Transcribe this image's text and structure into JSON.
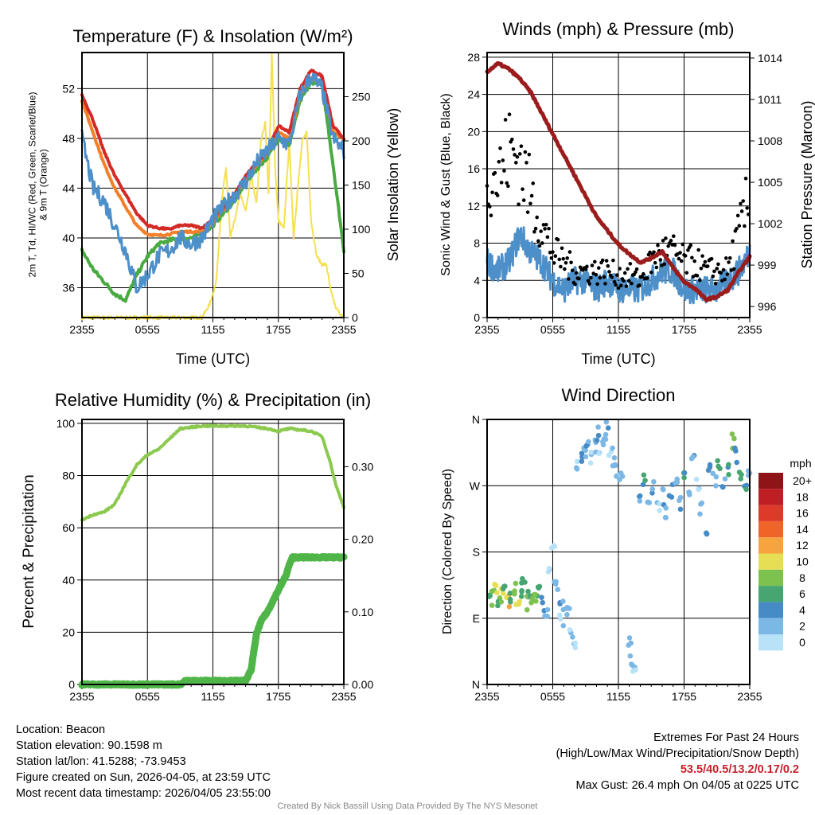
{
  "chart_data": [
    {
      "type": "line",
      "title": "Temperature (F) & Insolation (W/m²)",
      "xlabel": "Time (UTC)",
      "ylabel": "2m T, Td, HI/WC (Red, Green, Scarlet/Blue) & 9m T (Orange)",
      "ylabel_line1": "2m T, T",
      "ylabel_sub": "d",
      "ylabel_line1b": ", HI/WC (Red, Green, Scarlet/Blue)",
      "ylabel_line2": "& 9m T (Orange)",
      "y2label": "Solar Insolation (Yellow)",
      "x_ticks": [
        "2355",
        "0555",
        "1155",
        "1755",
        "2355"
      ],
      "ylim": [
        33.6,
        54.9
      ],
      "y_ticks": [
        36,
        40,
        44,
        48,
        52
      ],
      "y2lim": [
        0,
        300
      ],
      "y2_ticks": [
        0,
        50,
        100,
        150,
        200,
        250
      ],
      "hours": [
        0,
        1,
        2,
        3,
        4,
        5,
        6,
        7,
        8,
        9,
        10,
        11,
        12,
        13,
        14,
        15,
        16,
        17,
        18,
        19,
        20,
        21,
        22,
        23,
        24
      ],
      "series": [
        {
          "name": "2m T",
          "color": "#d42a26",
          "values": [
            51.5,
            49.5,
            47,
            45,
            43.5,
            42,
            41,
            40.8,
            40.7,
            41,
            41,
            40.8,
            41.5,
            42.5,
            43.5,
            45,
            46,
            47,
            49,
            48.5,
            52,
            53.5,
            53,
            49,
            48
          ]
        },
        {
          "name": "9m T",
          "color": "#f27f2a",
          "values": [
            51,
            48.5,
            46,
            44,
            42.5,
            41,
            40.3,
            40.2,
            40.3,
            40.5,
            40.5,
            40.5,
            41.3,
            42.3,
            43.3,
            44.8,
            45.8,
            46.8,
            48.5,
            48,
            51.5,
            52.8,
            52.5,
            48.5,
            48
          ]
        },
        {
          "name": "Td",
          "color": "#4aaa42",
          "values": [
            39,
            37.5,
            36.5,
            35.5,
            35,
            37,
            38.5,
            39.5,
            39.8,
            40,
            40,
            40.3,
            41,
            42,
            43,
            44.5,
            45.5,
            46.5,
            48,
            47.5,
            51,
            52.5,
            52.5,
            46,
            39
          ]
        },
        {
          "name": "HI/WC",
          "color": "#4d8fc9",
          "values": [
            48,
            44,
            43,
            41,
            39,
            36,
            37,
            38.5,
            39,
            40,
            39.5,
            40,
            41.5,
            42.5,
            43.5,
            44.5,
            46,
            47,
            48,
            47.5,
            51.5,
            53,
            52,
            48,
            47
          ]
        }
      ],
      "insolation": {
        "name": "Solar Insolation",
        "color": "#f5e04f",
        "hours": [
          0,
          11,
          11.7,
          12.3,
          12.8,
          13.2,
          13.6,
          14,
          14.5,
          15,
          15.5,
          16,
          16.4,
          16.8,
          17.1,
          17.4,
          17.7,
          18,
          18.5,
          19,
          19.4,
          19.8,
          20.2,
          20.6,
          21,
          21.5,
          22,
          22.4,
          22.8,
          23.3,
          24
        ],
        "values": [
          0,
          0,
          15,
          40,
          130,
          170,
          90,
          110,
          140,
          120,
          160,
          130,
          200,
          220,
          140,
          300,
          170,
          110,
          100,
          200,
          90,
          150,
          200,
          210,
          110,
          70,
          60,
          60,
          30,
          10,
          0
        ]
      }
    },
    {
      "type": "line",
      "title": "Winds (mph) & Pressure (mb)",
      "xlabel": "Time (UTC)",
      "ylabel": "Sonic Wind & Gust (Blue, Black)",
      "y2label": "Station Pressure (Maroon)",
      "x_ticks": [
        "2355",
        "0555",
        "1155",
        "1755",
        "2355"
      ],
      "ylim": [
        0,
        28.5
      ],
      "y_ticks": [
        0,
        4,
        8,
        12,
        16,
        20,
        24,
        28
      ],
      "y2lim": [
        995.2,
        1014.4
      ],
      "y2_ticks": [
        996,
        999,
        1002,
        1005,
        1008,
        1011,
        1014
      ],
      "hours": [
        0,
        1,
        2,
        3,
        4,
        5,
        6,
        7,
        8,
        9,
        10,
        11,
        12,
        13,
        14,
        15,
        16,
        17,
        18,
        19,
        20,
        21,
        22,
        23,
        24
      ],
      "wind": {
        "color": "#4d8fc9",
        "values": [
          6,
          5,
          6,
          9,
          7,
          6,
          4,
          3,
          4,
          4,
          3,
          4,
          3,
          3,
          3,
          4,
          5,
          5,
          3,
          3,
          3,
          3,
          4,
          5,
          7
        ]
      },
      "gust": {
        "color": "#000000",
        "values": [
          16,
          15,
          18,
          17,
          13,
          10,
          7,
          6,
          5,
          5,
          5,
          5,
          4.5,
          4.5,
          4,
          6,
          7,
          7,
          6,
          6,
          5,
          5,
          5,
          9,
          13
        ]
      },
      "pressure": {
        "color": "#9b1c1c",
        "values": [
          1013,
          1013.6,
          1013.2,
          1012.5,
          1011.5,
          1010,
          1008.5,
          1007,
          1005.5,
          1004,
          1002.5,
          1001.5,
          1000.5,
          999.8,
          999.2,
          999.5,
          1000,
          998.8,
          997.8,
          997.3,
          996.5,
          996.7,
          997.2,
          998.5,
          999.6
        ]
      }
    },
    {
      "type": "line",
      "title": "Relative Humidity (%) & Precipitation (in)",
      "ylabel": "Percent & Precipitation",
      "x_ticks": [
        "2355",
        "0555",
        "1155",
        "1755",
        "2355"
      ],
      "ylim": [
        0,
        101.5
      ],
      "y_ticks": [
        0,
        20,
        40,
        60,
        80,
        100
      ],
      "y2lim": [
        0,
        0.365
      ],
      "y2_ticks": [
        "0.00",
        "0.10",
        "0.20",
        "0.30"
      ],
      "rh": {
        "color": "#8cc94f",
        "hours": [
          0,
          1,
          2,
          3,
          4,
          5,
          6,
          7,
          8,
          9,
          10,
          11,
          12,
          13,
          14,
          15,
          16,
          17,
          18,
          19,
          20,
          21,
          22,
          22.7,
          23.3,
          24
        ],
        "values": [
          63,
          65,
          66,
          69,
          77,
          84,
          88,
          90,
          94,
          98,
          98.5,
          99,
          99,
          99,
          99,
          99,
          98.5,
          98,
          97,
          98,
          97.5,
          97,
          95,
          86,
          76,
          68
        ]
      },
      "precip": {
        "color": "#4fb548",
        "hours": [
          0,
          9,
          9.5,
          15,
          15.5,
          16,
          16.5,
          17,
          18,
          18.7,
          19,
          19.3,
          24
        ],
        "values": [
          0,
          0,
          0.005,
          0.005,
          0.02,
          0.07,
          0.09,
          0.1,
          0.13,
          0.15,
          0.165,
          0.175,
          0.175
        ]
      }
    },
    {
      "type": "scatter",
      "title": "Wind Direction",
      "ylabel": "Direction (Colored By Speed)",
      "x_ticks": [
        "2355",
        "0555",
        "1155",
        "1755",
        "2355"
      ],
      "y_ticks": [
        "N",
        "E",
        "S",
        "W",
        "N"
      ],
      "ylim": [
        0,
        360
      ],
      "colorbar": {
        "title": "mph",
        "labels": [
          "20+",
          "18",
          "16",
          "14",
          "12",
          "10",
          "8",
          "6",
          "4",
          "2",
          "0"
        ],
        "colors": [
          "#8f1418",
          "#be1e24",
          "#de3a2a",
          "#f06428",
          "#f7a43f",
          "#e6df53",
          "#7dc24e",
          "#46a571",
          "#468bc6",
          "#7cb8e6",
          "#b7e2f7"
        ]
      },
      "points": [
        [
          0.2,
          120,
          7
        ],
        [
          0.5,
          118,
          9
        ],
        [
          0.8,
          125,
          11
        ],
        [
          1.0,
          115,
          8
        ],
        [
          1.3,
          122,
          10
        ],
        [
          1.6,
          128,
          7
        ],
        [
          1.9,
          112,
          12
        ],
        [
          2.2,
          120,
          6
        ],
        [
          2.5,
          130,
          9
        ],
        [
          2.8,
          118,
          11
        ],
        [
          3.0,
          125,
          8
        ],
        [
          3.3,
          140,
          7
        ],
        [
          3.6,
          110,
          10
        ],
        [
          3.9,
          122,
          6
        ],
        [
          4.2,
          115,
          9
        ],
        [
          4.5,
          120,
          8
        ],
        [
          4.8,
          135,
          7
        ],
        [
          5.1,
          110,
          5
        ],
        [
          5.4,
          100,
          3
        ],
        [
          5.7,
          160,
          2
        ],
        [
          6.0,
          180,
          1
        ],
        [
          6.2,
          130,
          3
        ],
        [
          6.5,
          120,
          4
        ],
        [
          6.8,
          90,
          2
        ],
        [
          7.1,
          110,
          3
        ],
        [
          7.4,
          100,
          4
        ],
        [
          7.7,
          70,
          2
        ],
        [
          8.0,
          50,
          2
        ],
        [
          8.3,
          300,
          2
        ],
        [
          8.6,
          310,
          5
        ],
        [
          8.9,
          320,
          3
        ],
        [
          9.2,
          330,
          4
        ],
        [
          9.5,
          310,
          2
        ],
        [
          9.8,
          325,
          3
        ],
        [
          10.1,
          340,
          4
        ],
        [
          10.4,
          320,
          2
        ],
        [
          10.7,
          335,
          3
        ],
        [
          11.0,
          350,
          4
        ],
        [
          11.3,
          315,
          2
        ],
        [
          11.6,
          300,
          3
        ],
        [
          11.9,
          290,
          2
        ],
        [
          12.2,
          285,
          3
        ],
        [
          13.0,
          60,
          2
        ],
        [
          13.2,
          30,
          3
        ],
        [
          13.5,
          20,
          2
        ],
        [
          14.0,
          260,
          4
        ],
        [
          14.4,
          280,
          6
        ],
        [
          14.8,
          250,
          3
        ],
        [
          15.2,
          270,
          4
        ],
        [
          15.6,
          240,
          2
        ],
        [
          16.0,
          255,
          4
        ],
        [
          16.4,
          230,
          3
        ],
        [
          16.8,
          265,
          5
        ],
        [
          17.2,
          275,
          3
        ],
        [
          17.6,
          245,
          4
        ],
        [
          18.0,
          285,
          6
        ],
        [
          18.4,
          260,
          3
        ],
        [
          18.8,
          300,
          4
        ],
        [
          19.2,
          270,
          2
        ],
        [
          19.6,
          240,
          3
        ],
        [
          20.0,
          210,
          4
        ],
        [
          20.4,
          290,
          5
        ],
        [
          20.8,
          280,
          3
        ],
        [
          21.2,
          300,
          7
        ],
        [
          21.6,
          270,
          4
        ],
        [
          22.0,
          295,
          6
        ],
        [
          22.4,
          330,
          9
        ],
        [
          22.8,
          310,
          5
        ],
        [
          23.2,
          285,
          7
        ],
        [
          23.6,
          275,
          6
        ],
        [
          24.0,
          290,
          4
        ]
      ]
    }
  ],
  "info_left": [
    "Location: Beacon",
    "Station elevation: 90.1598 m",
    "Station lat/lon: 41.5288; -73.9453",
    "Figure created on Sun, 2026-04-05, at 23:59 UTC",
    "Most recent data timestamp: 2026/04/05 23:55:00"
  ],
  "info_right": {
    "title": "Extremes For Past 24 Hours",
    "subtitle": "(High/Low/Max Wind/Precipitation/Snow Depth)",
    "values": "53.5/40.5/13.2/0.17/0.2",
    "max_gust": "Max Gust: 26.4 mph On 04/05 at 0225 UTC"
  },
  "credit": "Created By Nick Bassill Using Data Provided By The NYS Mesonet"
}
